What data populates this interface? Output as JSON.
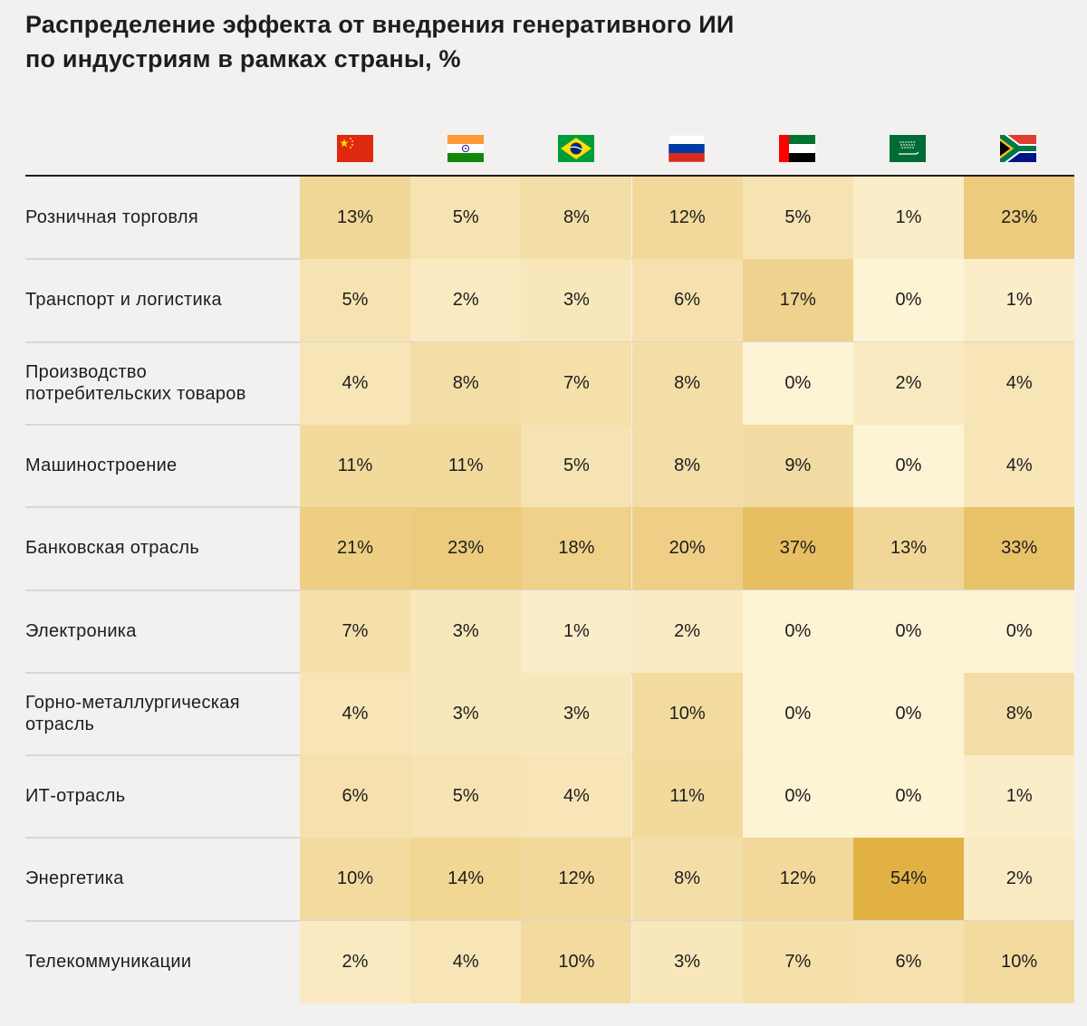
{
  "title_lines": [
    "Распределение эффекта от внедрения генеративного ИИ",
    "по индустриям в рамках страны, %"
  ],
  "flags": [
    {
      "country": "China",
      "icon": "flag-china-icon"
    },
    {
      "country": "India",
      "icon": "flag-india-icon"
    },
    {
      "country": "Brazil",
      "icon": "flag-brazil-icon"
    },
    {
      "country": "Russia",
      "icon": "flag-russia-icon"
    },
    {
      "country": "UAE",
      "icon": "flag-uae-icon"
    },
    {
      "country": "Saudi Arabia",
      "icon": "flag-saudi-arabia-icon"
    },
    {
      "country": "South Africa",
      "icon": "flag-south-africa-icon"
    }
  ],
  "colors": {
    "scale_low": "#fdf3d5",
    "scale_high": "#e1b144",
    "background": "#f2f1ef",
    "text": "#1d1d1d"
  },
  "chart_data": {
    "type": "heatmap",
    "title": "Распределение эффекта от внедрения генеративного ИИ по индустриям в рамках страны, %",
    "columns": [
      "China",
      "India",
      "Brazil",
      "Russia",
      "UAE",
      "Saudi Arabia",
      "South Africa"
    ],
    "rows": [
      "Розничная торговля",
      "Транспорт и логистика",
      "Производство потребительских товаров",
      "Машиностроение",
      "Банковская отрасль",
      "Электроника",
      "Горно-металлургическая отрасль",
      "ИТ-отрасль",
      "Энергетика",
      "Телекоммуникации"
    ],
    "row_label_lines": [
      [
        "Розничная торговля"
      ],
      [
        "Транспорт и логистика"
      ],
      [
        "Производство",
        "потребительских товаров"
      ],
      [
        "Машиностроение"
      ],
      [
        "Банковская отрасль"
      ],
      [
        "Электроника"
      ],
      [
        "Горно-металлургическая",
        "отрасль"
      ],
      [
        "ИТ-отрасль"
      ],
      [
        "Энергетика"
      ],
      [
        "Телекоммуникации"
      ]
    ],
    "unit": "%",
    "values": [
      [
        13,
        5,
        8,
        12,
        5,
        1,
        23
      ],
      [
        5,
        2,
        3,
        6,
        17,
        0,
        1
      ],
      [
        4,
        8,
        7,
        8,
        0,
        2,
        4
      ],
      [
        11,
        11,
        5,
        8,
        9,
        0,
        4
      ],
      [
        21,
        23,
        18,
        20,
        37,
        13,
        33
      ],
      [
        7,
        3,
        1,
        2,
        0,
        0,
        0
      ],
      [
        4,
        3,
        3,
        10,
        0,
        0,
        8
      ],
      [
        6,
        5,
        4,
        11,
        0,
        0,
        1
      ],
      [
        10,
        14,
        12,
        8,
        12,
        54,
        2
      ],
      [
        2,
        4,
        10,
        3,
        7,
        6,
        10
      ]
    ]
  }
}
